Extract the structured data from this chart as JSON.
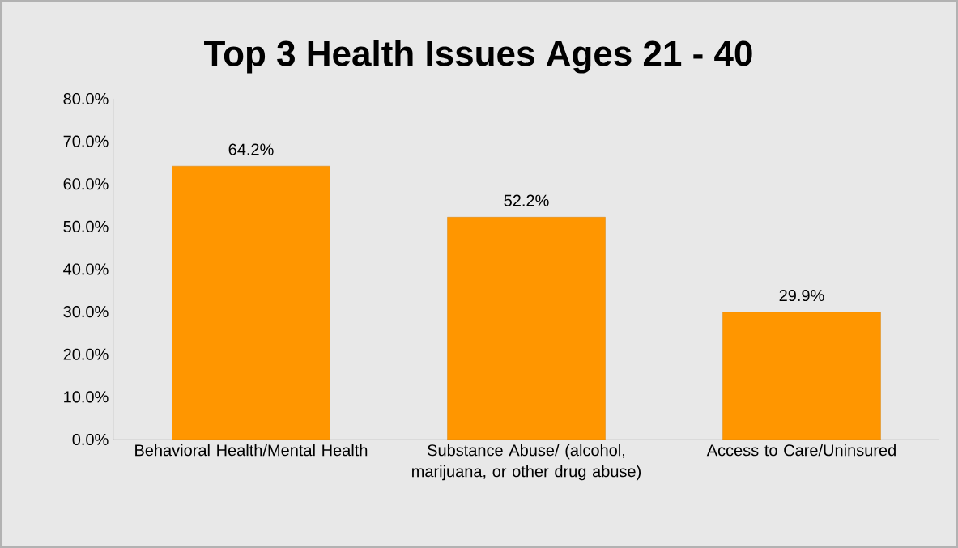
{
  "chart_data": {
    "type": "bar",
    "title": "Top 3 Health Issues Ages 21 - 40",
    "categories": [
      "Behavioral Health/Mental Health",
      "Substance Abuse/ (alcohol, marijuana, or other drug abuse)",
      "Access to Care/Uninsured"
    ],
    "values": [
      64.2,
      52.2,
      29.9
    ],
    "value_labels": [
      "64.2%",
      "52.2%",
      "29.9%"
    ],
    "color": "#ff9600",
    "ylim": [
      0,
      80
    ],
    "yticks": [
      {
        "value": 0,
        "label": "0.0%"
      },
      {
        "value": 10,
        "label": "10.0%"
      },
      {
        "value": 20,
        "label": "20.0%"
      },
      {
        "value": 30,
        "label": "30.0%"
      },
      {
        "value": 40,
        "label": "40.0%"
      },
      {
        "value": 50,
        "label": "50.0%"
      },
      {
        "value": 60,
        "label": "60.0%"
      },
      {
        "value": 70,
        "label": "70.0%"
      },
      {
        "value": 80,
        "label": "80.0%"
      }
    ]
  }
}
